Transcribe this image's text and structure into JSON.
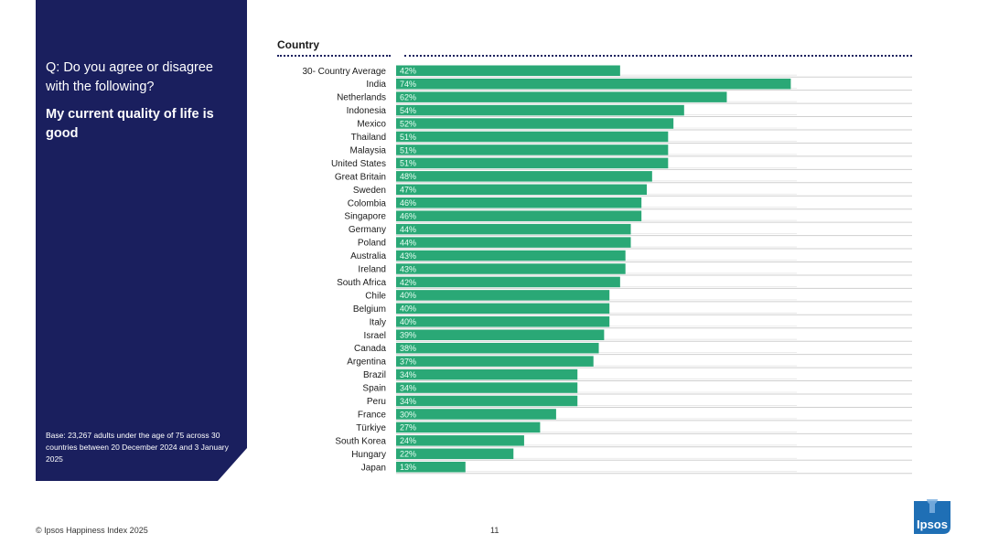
{
  "panel": {
    "question": "Q: Do you agree or disagree with the following?",
    "statement": "My current quality of life is good",
    "base": "Base: 23,267 adults under the age of 75 across 30 countries between 20 December 2024 and 3 January 2025"
  },
  "column_title": "Country",
  "footer": {
    "copyright": "© Ipsos Happiness Index 2025",
    "page": "11"
  },
  "logo_text": "Ipsos",
  "colors": {
    "bar": "#2aa876",
    "panel": "#1a1f5e",
    "gridline": "#cfcfcf",
    "logo": "#1f6fb5"
  },
  "chart_data": {
    "type": "bar",
    "orientation": "horizontal",
    "categories": [
      "30- Country Average",
      "India",
      "Netherlands",
      "Indonesia",
      "Mexico",
      "Thailand",
      "Malaysia",
      "United States",
      "Great Britain",
      "Sweden",
      "Colombia",
      "Singapore",
      "Germany",
      "Poland",
      "Australia",
      "Ireland",
      "South Africa",
      "Chile",
      "Belgium",
      "Italy",
      "Israel",
      "Canada",
      "Argentina",
      "Brazil",
      "Spain",
      "Peru",
      "France",
      "Türkiye",
      "South Korea",
      "Hungary",
      "Japan"
    ],
    "values": [
      42,
      74,
      62,
      54,
      52,
      51,
      51,
      51,
      48,
      47,
      46,
      46,
      44,
      44,
      43,
      43,
      42,
      40,
      40,
      40,
      39,
      38,
      37,
      34,
      34,
      34,
      30,
      27,
      24,
      22,
      13
    ],
    "value_suffix": "%",
    "xlim": [
      0,
      100
    ],
    "title": "",
    "xlabel": "",
    "ylabel": "Country",
    "grid": false,
    "legend": "none"
  }
}
